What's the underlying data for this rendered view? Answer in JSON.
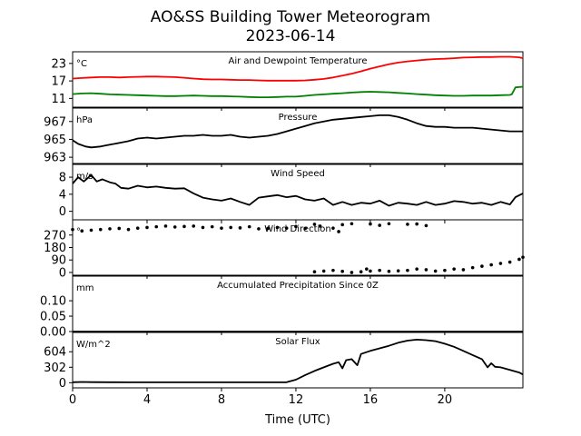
{
  "figure": {
    "title": "AO&SS Building Tower Meteorogram",
    "subtitle": "2023-06-14",
    "xlabel": "Time (UTC)",
    "xticks": [
      0,
      4,
      8,
      12,
      16,
      20
    ],
    "xlim": [
      0,
      24.2
    ]
  },
  "chart_data": [
    {
      "type": "line",
      "title": "Air and Dewpoint Temperature",
      "unit": "°C",
      "ylim": [
        8,
        27
      ],
      "yticks": [
        11,
        17,
        23
      ],
      "series": [
        {
          "color": "#ff0000",
          "x": [
            0,
            0.5,
            1,
            1.5,
            2,
            2.5,
            3,
            3.5,
            4,
            4.5,
            5,
            5.5,
            6,
            6.5,
            7,
            7.5,
            8,
            8.5,
            9,
            9.5,
            10,
            10.5,
            11,
            11.5,
            12,
            12.5,
            13,
            13.5,
            14,
            14.5,
            15,
            15.5,
            16,
            16.5,
            17,
            17.5,
            18,
            18.5,
            19,
            19.5,
            20,
            20.5,
            21,
            21.5,
            22,
            22.5,
            23,
            23.5,
            24,
            24.2
          ],
          "values": [
            17.8,
            18,
            18.2,
            18.3,
            18.3,
            18.2,
            18.3,
            18.4,
            18.5,
            18.5,
            18.4,
            18.3,
            18.1,
            17.8,
            17.6,
            17.5,
            17.5,
            17.4,
            17.3,
            17.3,
            17.2,
            17.1,
            17.1,
            17.1,
            17.1,
            17.2,
            17.4,
            17.7,
            18.2,
            18.8,
            19.5,
            20.3,
            21.2,
            22,
            22.7,
            23.3,
            23.7,
            24,
            24.3,
            24.5,
            24.6,
            24.8,
            25,
            25.1,
            25.2,
            25.2,
            25.3,
            25.3,
            25.1,
            24.8
          ]
        },
        {
          "color": "#008000",
          "x": [
            0,
            0.5,
            1,
            1.5,
            2,
            2.5,
            3,
            3.5,
            4,
            4.5,
            5,
            5.5,
            6,
            6.5,
            7,
            7.5,
            8,
            8.5,
            9,
            9.5,
            10,
            10.5,
            11,
            11.5,
            12,
            12.5,
            13,
            13.5,
            14,
            14.5,
            15,
            15.5,
            16,
            16.5,
            17,
            17.5,
            18,
            18.5,
            19,
            19.5,
            20,
            20.5,
            21,
            21.5,
            22,
            22.5,
            23,
            23.5,
            23.6,
            23.8,
            24.2
          ],
          "values": [
            12.5,
            12.7,
            12.8,
            12.6,
            12.4,
            12.3,
            12.2,
            12.1,
            12,
            11.9,
            11.8,
            11.8,
            11.9,
            12,
            11.9,
            11.8,
            11.8,
            11.7,
            11.6,
            11.5,
            11.4,
            11.4,
            11.5,
            11.6,
            11.6,
            11.9,
            12.2,
            12.4,
            12.6,
            12.8,
            13,
            13.2,
            13.3,
            13.2,
            13.1,
            12.9,
            12.7,
            12.5,
            12.3,
            12.1,
            12,
            11.9,
            11.9,
            12,
            12,
            12,
            12.1,
            12.2,
            12.4,
            14.8,
            15
          ]
        }
      ]
    },
    {
      "type": "line",
      "title": "Pressure",
      "unit": "hPa",
      "ylim": [
        962.3,
        968.5
      ],
      "yticks": [
        963,
        965,
        967
      ],
      "series": [
        {
          "color": "#000000",
          "x": [
            0,
            0.3,
            0.7,
            1,
            1.5,
            2,
            2.5,
            3,
            3.5,
            4,
            4.5,
            5,
            5.5,
            6,
            6.5,
            7,
            7.5,
            8,
            8.5,
            9,
            9.5,
            10,
            10.5,
            11,
            11.5,
            12,
            12.5,
            13,
            13.5,
            14,
            14.5,
            15,
            15.5,
            16,
            16.5,
            17,
            17.5,
            18,
            18.5,
            19,
            19.5,
            20,
            20.5,
            21,
            21.5,
            22,
            22.5,
            23,
            23.5,
            24,
            24.2
          ],
          "values": [
            964.9,
            964.5,
            964.2,
            964.1,
            964.2,
            964.4,
            964.6,
            964.8,
            965.1,
            965.2,
            965.1,
            965.2,
            965.3,
            965.4,
            965.4,
            965.5,
            965.4,
            965.4,
            965.5,
            965.3,
            965.2,
            965.3,
            965.4,
            965.6,
            965.9,
            966.2,
            966.5,
            966.8,
            967,
            967.2,
            967.3,
            967.4,
            967.5,
            967.6,
            967.7,
            967.7,
            967.5,
            967.2,
            966.8,
            966.5,
            966.4,
            966.4,
            966.3,
            966.3,
            966.3,
            966.2,
            966.1,
            966,
            965.9,
            965.9,
            965.9
          ]
        }
      ]
    },
    {
      "type": "line",
      "title": "Wind Speed",
      "unit": "m/s",
      "ylim": [
        -2,
        11
      ],
      "yticks": [
        0,
        4,
        8
      ],
      "series": [
        {
          "color": "#000000",
          "x": [
            0,
            0.3,
            0.6,
            1,
            1.3,
            1.6,
            2,
            2.3,
            2.6,
            3,
            3.5,
            4,
            4.5,
            5,
            5.5,
            6,
            6.5,
            7,
            7.5,
            8,
            8.5,
            9,
            9.5,
            10,
            10.5,
            11,
            11.5,
            12,
            12.5,
            13,
            13.5,
            14,
            14.5,
            15,
            15.5,
            16,
            16.5,
            17,
            17.5,
            18,
            18.5,
            19,
            19.5,
            20,
            20.5,
            21,
            21.5,
            22,
            22.5,
            23,
            23.5,
            23.8,
            24.2
          ],
          "values": [
            6.5,
            8,
            7,
            8.5,
            7,
            7.5,
            6.8,
            6.5,
            5.5,
            5.3,
            6,
            5.6,
            5.8,
            5.5,
            5.3,
            5.4,
            4.2,
            3.2,
            2.8,
            2.5,
            3,
            2.2,
            1.5,
            3.2,
            3.5,
            3.8,
            3.3,
            3.6,
            2.8,
            2.5,
            3,
            1.5,
            2.2,
            1.5,
            2,
            1.8,
            2.5,
            1.3,
            2,
            1.8,
            1.5,
            2.2,
            1.5,
            1.8,
            2.4,
            2.2,
            1.8,
            2,
            1.5,
            2.2,
            1.6,
            3.3,
            4.2
          ]
        }
      ]
    },
    {
      "type": "scatter",
      "title": "Wind Direction",
      "unit": "°",
      "ylim": [
        -20,
        380
      ],
      "yticks": [
        0,
        90,
        180,
        270
      ],
      "series": [
        {
          "color": "#000000",
          "x": [
            0,
            0.5,
            1,
            1.5,
            2,
            2.5,
            3,
            3.5,
            4,
            4.5,
            5,
            5.5,
            6,
            6.5,
            7,
            7.5,
            8,
            8.5,
            9,
            9.5,
            10,
            10.5,
            11,
            11.5,
            12,
            12.5,
            13,
            13.3,
            14,
            14.3,
            14.5,
            15,
            16,
            16.5,
            17,
            18,
            18.5,
            19
          ],
          "values": [
            310,
            300,
            305,
            310,
            315,
            318,
            310,
            320,
            325,
            330,
            335,
            328,
            332,
            335,
            325,
            330,
            320,
            325,
            322,
            330,
            315,
            318,
            325,
            320,
            332,
            318,
            348,
            335,
            320,
            295,
            345,
            352,
            350,
            340,
            352,
            348,
            350,
            338
          ]
        },
        {
          "color": "#000000",
          "x": [
            13,
            13.5,
            14,
            14.5,
            15,
            15.5,
            15.8,
            16,
            16.5,
            17,
            17.5,
            18,
            18.5,
            19,
            19.5,
            20,
            20.5,
            21,
            21.5,
            22,
            22.5,
            23,
            23.5,
            24,
            24.2
          ],
          "values": [
            5,
            10,
            15,
            8,
            0,
            5,
            25,
            10,
            15,
            8,
            12,
            15,
            25,
            20,
            10,
            15,
            25,
            20,
            35,
            45,
            55,
            65,
            75,
            95,
            110
          ]
        }
      ]
    },
    {
      "type": "line",
      "title": "Accumulated Precipitation Since 0Z",
      "unit": "mm",
      "ylim": [
        0,
        0.18
      ],
      "yticks": [
        0.0,
        0.05,
        0.1
      ],
      "ytick_labels": [
        "0.00",
        "0.05",
        "0.10"
      ],
      "series": [
        {
          "color": "#000000",
          "x": [
            0,
            24.2
          ],
          "values": [
            0,
            0
          ]
        }
      ]
    },
    {
      "type": "line",
      "title": "Solar Flux",
      "unit": "W/m^2",
      "ylim": [
        -100,
        980
      ],
      "yticks": [
        0,
        302,
        604
      ],
      "series": [
        {
          "color": "#000000",
          "x": [
            0,
            0.5,
            1,
            2,
            3,
            4,
            5,
            6,
            7,
            8,
            9,
            10,
            11,
            11.5,
            12,
            12.5,
            13,
            13.5,
            14,
            14.3,
            14.5,
            14.7,
            15,
            15.3,
            15.5,
            16,
            16.5,
            17,
            17.5,
            18,
            18.5,
            19,
            19.5,
            20,
            20.5,
            21,
            21.5,
            22,
            22.3,
            22.5,
            22.7,
            23,
            23.5,
            24,
            24.2
          ],
          "values": [
            10,
            15,
            12,
            10,
            8,
            8,
            8,
            8,
            8,
            8,
            8,
            8,
            8,
            10,
            60,
            150,
            230,
            300,
            370,
            400,
            280,
            440,
            460,
            340,
            560,
            620,
            670,
            720,
            780,
            820,
            840,
            830,
            810,
            760,
            700,
            620,
            540,
            460,
            300,
            380,
            310,
            300,
            250,
            200,
            160
          ]
        }
      ]
    }
  ]
}
